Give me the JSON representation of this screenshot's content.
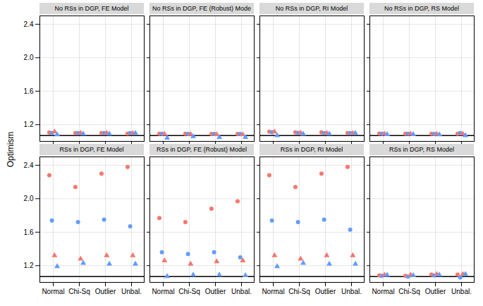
{
  "chart_data": [
    {
      "type": "scatter",
      "title": "No RSs in DGP, FE Model",
      "ylabel": "Optimism",
      "categories": [
        "Normal",
        "Chi-Sq",
        "Outlier",
        "Unbal."
      ],
      "series": [
        {
          "color": "#F8766D",
          "marker": "circle",
          "values": [
            1.105,
            1.1,
            1.098,
            1.093
          ]
        },
        {
          "color": "#619CFF",
          "marker": "circle",
          "values": [
            1.1,
            1.098,
            1.098,
            1.098
          ]
        },
        {
          "color": "#F8766D",
          "marker": "triangle",
          "values": [
            1.115,
            1.1,
            1.1,
            1.098
          ]
        },
        {
          "color": "#619CFF",
          "marker": "triangle",
          "values": [
            1.08,
            1.09,
            1.09,
            1.098
          ]
        }
      ],
      "hline": 1.07,
      "ylim": [
        1.0,
        2.5
      ],
      "yticks": [
        1.2,
        1.6,
        {
          "value": 2.0,
          "label": "2.0"
        },
        2.4
      ],
      "grid": true,
      "tick_labels": "y"
    },
    {
      "type": "scatter",
      "title": "No RSs in DGP, FE (Robust) Mode",
      "categories": [
        "Normal",
        "Chi-Sq",
        "Outlier",
        "Unbal."
      ],
      "series": [
        {
          "color": "#F8766D",
          "marker": "circle",
          "values": [
            1.09,
            1.09,
            1.088,
            1.088
          ]
        },
        {
          "color": "#619CFF",
          "marker": "circle",
          "values": [
            1.09,
            1.088,
            1.088,
            1.088
          ]
        },
        {
          "color": "#F8766D",
          "marker": "triangle",
          "values": [
            1.088,
            1.086,
            1.082,
            1.08
          ]
        },
        {
          "color": "#619CFF",
          "marker": "triangle",
          "values": [
            1.04,
            1.058,
            1.05,
            1.05
          ]
        }
      ],
      "hline": 1.07,
      "ylim": [
        1.0,
        2.5
      ],
      "yticks": [
        1.2,
        1.6,
        {
          "value": 2.0,
          "label": "2.0"
        },
        2.4
      ],
      "grid": true,
      "tick_labels": false
    },
    {
      "type": "scatter",
      "title": "No RSs in DGP, RI Model",
      "categories": [
        "Normal",
        "Chi-Sq",
        "Outlier",
        "Unbal."
      ],
      "series": [
        {
          "color": "#F8766D",
          "marker": "circle",
          "values": [
            1.115,
            1.108,
            1.108,
            1.1
          ]
        },
        {
          "color": "#619CFF",
          "marker": "circle",
          "values": [
            1.11,
            1.102,
            1.1,
            1.098
          ]
        },
        {
          "color": "#F8766D",
          "marker": "triangle",
          "values": [
            1.115,
            1.102,
            1.1,
            1.098
          ]
        },
        {
          "color": "#619CFF",
          "marker": "triangle",
          "values": [
            1.07,
            1.088,
            1.09,
            1.098
          ]
        }
      ],
      "hline": 1.07,
      "ylim": [
        1.0,
        2.5
      ],
      "yticks": [
        1.2,
        1.6,
        {
          "value": 2.0,
          "label": "2.0"
        },
        2.4
      ],
      "grid": true,
      "tick_labels": false
    },
    {
      "type": "scatter",
      "title": "No RSs in DGP, RS Model",
      "categories": [
        "Normal",
        "Chi-Sq",
        "Outlier",
        "Unbal."
      ],
      "series": [
        {
          "color": "#F8766D",
          "marker": "circle",
          "values": [
            1.092,
            1.09,
            1.09,
            1.09
          ]
        },
        {
          "color": "#619CFF",
          "marker": "circle",
          "values": [
            1.09,
            1.09,
            1.088,
            1.098
          ]
        },
        {
          "color": "#F8766D",
          "marker": "triangle",
          "values": [
            1.09,
            1.09,
            1.088,
            1.09
          ]
        },
        {
          "color": "#619CFF",
          "marker": "triangle",
          "values": [
            1.082,
            1.082,
            1.08,
            1.07
          ]
        }
      ],
      "hline": 1.07,
      "ylim": [
        1.0,
        2.5
      ],
      "yticks": [
        1.2,
        1.6,
        {
          "value": 2.0,
          "label": "2.0"
        },
        2.4
      ],
      "grid": true,
      "tick_labels": false
    },
    {
      "type": "scatter",
      "title": "RSs in DGP, FE Model",
      "categories": [
        "Normal",
        "Chi-Sq",
        "Outlier",
        "Unbal."
      ],
      "series": [
        {
          "color": "#F8766D",
          "marker": "circle",
          "values": [
            2.28,
            2.14,
            2.3,
            2.38
          ]
        },
        {
          "color": "#619CFF",
          "marker": "circle",
          "values": [
            1.74,
            1.72,
            1.75,
            1.67
          ]
        },
        {
          "color": "#F8766D",
          "marker": "triangle",
          "values": [
            1.32,
            1.28,
            1.32,
            1.32
          ]
        },
        {
          "color": "#619CFF",
          "marker": "triangle",
          "values": [
            1.19,
            1.23,
            1.22,
            1.22
          ]
        }
      ],
      "hline": 1.07,
      "ylim": [
        1.0,
        2.5
      ],
      "yticks": [
        1.2,
        1.6,
        {
          "value": 2.0,
          "label": "2.0"
        },
        2.4
      ],
      "grid": true
    },
    {
      "type": "scatter",
      "title": "RSs in DGP, FE (Robust) Model",
      "categories": [
        "Normal",
        "Chi-Sq",
        "Outlier",
        "Unbal."
      ],
      "series": [
        {
          "color": "#F8766D",
          "marker": "circle",
          "values": [
            1.77,
            1.72,
            1.88,
            1.97
          ]
        },
        {
          "color": "#619CFF",
          "marker": "circle",
          "values": [
            1.36,
            1.34,
            1.36,
            1.3
          ]
        },
        {
          "color": "#F8766D",
          "marker": "triangle",
          "values": [
            1.26,
            1.22,
            1.25,
            1.26
          ]
        },
        {
          "color": "#619CFF",
          "marker": "triangle",
          "values": [
            1.072,
            1.09,
            1.09,
            1.082
          ]
        }
      ],
      "hline": 1.07,
      "ylim": [
        1.0,
        2.5
      ],
      "yticks": [
        1.2,
        1.6,
        {
          "value": 2.0,
          "label": "2.0"
        },
        2.4
      ],
      "grid": true,
      "tick_labels": "x"
    },
    {
      "type": "scatter",
      "title": "RSs in DGP, RI Model",
      "categories": [
        "Normal",
        "Chi-Sq",
        "Outlier",
        "Unbal."
      ],
      "series": [
        {
          "color": "#F8766D",
          "marker": "circle",
          "values": [
            2.28,
            2.14,
            2.3,
            2.38
          ]
        },
        {
          "color": "#619CFF",
          "marker": "circle",
          "values": [
            1.74,
            1.72,
            1.75,
            1.63
          ]
        },
        {
          "color": "#F8766D",
          "marker": "triangle",
          "values": [
            1.32,
            1.28,
            1.32,
            1.32
          ]
        },
        {
          "color": "#619CFF",
          "marker": "triangle",
          "values": [
            1.19,
            1.23,
            1.22,
            1.22
          ]
        }
      ],
      "hline": 1.07,
      "ylim": [
        1.0,
        2.5
      ],
      "yticks": [
        1.2,
        1.6,
        {
          "value": 2.0,
          "label": "2.0"
        },
        2.4
      ],
      "grid": true,
      "tick_labels": "x"
    },
    {
      "type": "scatter",
      "title": "RSs in DGP, RS Model",
      "categories": [
        "Normal",
        "Chi-Sq",
        "Outlier",
        "Unbal."
      ],
      "series": [
        {
          "color": "#F8766D",
          "marker": "circle",
          "values": [
            1.082,
            1.078,
            1.092,
            1.092
          ]
        },
        {
          "color": "#619CFF",
          "marker": "circle",
          "values": [
            1.078,
            1.07,
            1.082,
            1.06
          ]
        },
        {
          "color": "#F8766D",
          "marker": "triangle",
          "values": [
            1.09,
            1.09,
            1.098,
            1.098
          ]
        },
        {
          "color": "#619CFF",
          "marker": "triangle",
          "values": [
            1.088,
            1.082,
            1.09,
            1.098
          ]
        }
      ],
      "hline": 1.07,
      "ylim": [
        1.0,
        2.5
      ],
      "yticks": [
        1.2,
        1.6,
        {
          "value": 2.0,
          "label": "2.0"
        },
        2.4
      ],
      "grid": true,
      "tick_labels": "x"
    }
  ]
}
